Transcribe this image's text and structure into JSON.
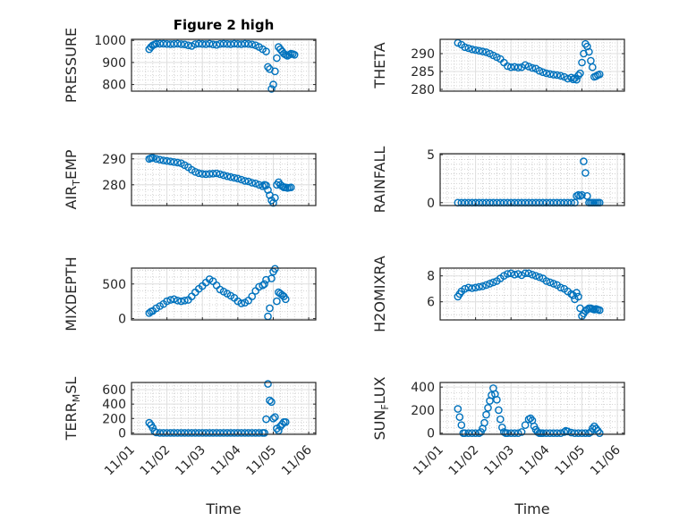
{
  "figure": {
    "title": "Figure 2 high"
  },
  "chart_data": [
    {
      "type": "scatter",
      "title": "Figure 2 high",
      "ylabel": "PRESSURE",
      "xlabel": "",
      "xlim": [
        0,
        5.2
      ],
      "ylim": [
        770,
        1005
      ],
      "yticks": [
        800,
        900,
        1000
      ],
      "xticks": [],
      "grid": true,
      "minor_grid": true,
      "color": "#0072BD",
      "x": [
        0.5,
        0.55,
        0.6,
        0.65,
        0.7,
        0.8,
        0.9,
        1.0,
        1.1,
        1.2,
        1.3,
        1.4,
        1.5,
        1.6,
        1.7,
        1.8,
        1.9,
        2.0,
        2.1,
        2.2,
        2.3,
        2.4,
        2.5,
        2.6,
        2.7,
        2.8,
        2.9,
        3.0,
        3.1,
        3.2,
        3.3,
        3.4,
        3.5,
        3.6,
        3.7,
        3.8,
        3.85,
        3.9,
        3.95,
        4.0,
        4.05,
        4.1,
        4.15,
        4.2,
        4.25,
        4.3,
        4.35,
        4.4,
        4.45,
        4.5,
        4.55,
        4.6
      ],
      "y": [
        960,
        970,
        978,
        982,
        985,
        985,
        985,
        984,
        983,
        984,
        985,
        983,
        982,
        978,
        975,
        983,
        985,
        984,
        983,
        985,
        982,
        980,
        984,
        985,
        984,
        983,
        985,
        984,
        983,
        985,
        984,
        982,
        978,
        970,
        960,
        950,
        880,
        870,
        780,
        800,
        860,
        920,
        970,
        960,
        950,
        940,
        935,
        930,
        935,
        940,
        938,
        935
      ]
    },
    {
      "type": "scatter",
      "title": "",
      "ylabel": "THETA",
      "xlabel": "",
      "xlim": [
        0,
        5.2
      ],
      "ylim": [
        279.5,
        294
      ],
      "yticks": [
        280,
        285,
        290
      ],
      "xticks": [],
      "grid": true,
      "minor_grid": true,
      "color": "#0072BD",
      "x": [
        0.5,
        0.6,
        0.7,
        0.8,
        0.9,
        1.0,
        1.1,
        1.2,
        1.3,
        1.4,
        1.5,
        1.6,
        1.7,
        1.8,
        1.9,
        2.0,
        2.1,
        2.2,
        2.3,
        2.4,
        2.5,
        2.6,
        2.7,
        2.8,
        2.9,
        3.0,
        3.1,
        3.2,
        3.3,
        3.4,
        3.5,
        3.6,
        3.7,
        3.75,
        3.8,
        3.85,
        3.9,
        3.95,
        4.0,
        4.05,
        4.1,
        4.15,
        4.2,
        4.25,
        4.3,
        4.35,
        4.4,
        4.45,
        4.5
      ],
      "y": [
        293,
        292.5,
        291.8,
        291.5,
        291.2,
        291,
        290.8,
        290.6,
        290.4,
        290,
        289.5,
        289,
        288.5,
        287.5,
        286.5,
        286.2,
        286.3,
        286.1,
        286.2,
        286.8,
        286.4,
        286,
        285.8,
        285.2,
        284.8,
        284.5,
        284.3,
        284.1,
        284,
        283.8,
        283.5,
        283,
        283.3,
        282.8,
        283.1,
        282.7,
        283.9,
        284.5,
        287.5,
        290,
        292.7,
        292,
        290.5,
        288,
        286.2,
        283.5,
        283.7,
        284,
        284.2
      ]
    },
    {
      "type": "scatter",
      "title": "",
      "ylabel": "AIR_TEMP",
      "ylabel_main": "AIR",
      "ylabel_sub": "T",
      "ylabel_tail": "EMP",
      "xlabel": "",
      "xlim": [
        0,
        5.2
      ],
      "ylim": [
        272,
        292
      ],
      "yticks": [
        280,
        290
      ],
      "xticks": [],
      "grid": true,
      "minor_grid": true,
      "color": "#0072BD",
      "x": [
        0.5,
        0.55,
        0.6,
        0.7,
        0.8,
        0.9,
        1.0,
        1.1,
        1.2,
        1.3,
        1.4,
        1.5,
        1.6,
        1.7,
        1.8,
        1.9,
        2.0,
        2.1,
        2.2,
        2.3,
        2.4,
        2.5,
        2.6,
        2.7,
        2.8,
        2.9,
        3.0,
        3.1,
        3.2,
        3.3,
        3.4,
        3.5,
        3.6,
        3.7,
        3.75,
        3.8,
        3.85,
        3.9,
        3.95,
        4.0,
        4.05,
        4.1,
        4.15,
        4.2,
        4.25,
        4.3,
        4.35,
        4.4,
        4.45,
        4.5
      ],
      "y": [
        290,
        290.3,
        290.4,
        290,
        289.7,
        289.4,
        289.2,
        289,
        288.8,
        288.6,
        288.3,
        287.6,
        286.8,
        285.8,
        285,
        284.5,
        284.2,
        284.1,
        284.2,
        284.3,
        284.4,
        284.1,
        283.7,
        283.3,
        283,
        282.7,
        282.4,
        282,
        281.5,
        281.3,
        280.8,
        280.5,
        280,
        279.5,
        280,
        279.8,
        278,
        276,
        274,
        273,
        275,
        280,
        281,
        280,
        279.5,
        279,
        279,
        278.8,
        278.9,
        279
      ]
    },
    {
      "type": "scatter",
      "title": "",
      "ylabel": "RAINFALL",
      "xlabel": "",
      "xlim": [
        0,
        5.2
      ],
      "ylim": [
        -0.3,
        5.1
      ],
      "yticks": [
        0,
        5
      ],
      "xticks": [],
      "grid": true,
      "minor_grid": true,
      "color": "#0072BD",
      "x": [
        0.5,
        0.6,
        0.7,
        0.8,
        0.9,
        1.0,
        1.1,
        1.2,
        1.3,
        1.4,
        1.5,
        1.6,
        1.7,
        1.8,
        1.9,
        2.0,
        2.1,
        2.2,
        2.3,
        2.4,
        2.5,
        2.6,
        2.7,
        2.8,
        2.9,
        3.0,
        3.1,
        3.2,
        3.3,
        3.4,
        3.5,
        3.6,
        3.7,
        3.8,
        3.85,
        3.9,
        3.95,
        4.0,
        4.05,
        4.1,
        4.15,
        4.2,
        4.25,
        4.3,
        4.35,
        4.4,
        4.45,
        4.5
      ],
      "y": [
        0,
        0,
        0,
        0,
        0,
        0,
        0,
        0,
        0,
        0,
        0,
        0,
        0,
        0,
        0,
        0,
        0,
        0,
        0,
        0,
        0,
        0,
        0,
        0,
        0,
        0,
        0,
        0,
        0,
        0,
        0,
        0,
        0,
        0,
        0.7,
        0.8,
        0.7,
        0.8,
        4.3,
        3.1,
        0.7,
        0,
        0,
        0,
        0,
        0,
        0,
        0
      ]
    },
    {
      "type": "scatter",
      "title": "",
      "ylabel": "MIXDEPTH",
      "xlabel": "",
      "xlim": [
        0,
        5.2
      ],
      "ylim": [
        -20,
        730
      ],
      "yticks": [
        0,
        500
      ],
      "xticks": [],
      "grid": true,
      "minor_grid": true,
      "color": "#0072BD",
      "x": [
        0.5,
        0.55,
        0.6,
        0.7,
        0.8,
        0.9,
        1.0,
        1.1,
        1.2,
        1.3,
        1.4,
        1.5,
        1.6,
        1.7,
        1.8,
        1.9,
        2.0,
        2.1,
        2.2,
        2.3,
        2.4,
        2.5,
        2.6,
        2.7,
        2.8,
        2.9,
        3.0,
        3.1,
        3.2,
        3.3,
        3.4,
        3.5,
        3.6,
        3.7,
        3.75,
        3.8,
        3.85,
        3.9,
        3.95,
        4.0,
        4.05,
        4.1,
        4.15,
        4.2,
        4.25,
        4.3,
        4.35
      ],
      "y": [
        80,
        100,
        110,
        150,
        180,
        210,
        250,
        270,
        280,
        260,
        250,
        260,
        270,
        320,
        380,
        430,
        470,
        520,
        570,
        540,
        480,
        420,
        390,
        360,
        330,
        300,
        250,
        220,
        230,
        260,
        320,
        400,
        460,
        480,
        500,
        560,
        30,
        150,
        580,
        680,
        720,
        250,
        380,
        360,
        340,
        320,
        280
      ]
    },
    {
      "type": "scatter",
      "title": "",
      "ylabel": "H2OMIXRA",
      "xlabel": "",
      "xlim": [
        0,
        5.2
      ],
      "ylim": [
        4.6,
        8.6
      ],
      "yticks": [
        6,
        8
      ],
      "xticks": [],
      "grid": true,
      "minor_grid": true,
      "color": "#0072BD",
      "x": [
        0.5,
        0.55,
        0.6,
        0.7,
        0.8,
        0.9,
        1.0,
        1.1,
        1.2,
        1.3,
        1.4,
        1.5,
        1.6,
        1.7,
        1.8,
        1.9,
        2.0,
        2.1,
        2.2,
        2.3,
        2.4,
        2.5,
        2.6,
        2.7,
        2.8,
        2.9,
        3.0,
        3.1,
        3.2,
        3.3,
        3.4,
        3.5,
        3.6,
        3.7,
        3.75,
        3.8,
        3.85,
        3.9,
        3.95,
        4.0,
        4.05,
        4.1,
        4.15,
        4.2,
        4.25,
        4.3,
        4.35,
        4.4,
        4.45,
        4.5
      ],
      "y": [
        6.4,
        6.6,
        6.8,
        7,
        7.1,
        7.05,
        7.1,
        7.15,
        7.2,
        7.3,
        7.4,
        7.5,
        7.6,
        7.8,
        8,
        8.15,
        8.2,
        8.1,
        8.15,
        8.05,
        8.2,
        8.2,
        8.1,
        8,
        7.9,
        7.8,
        7.6,
        7.5,
        7.4,
        7.3,
        7.1,
        7,
        6.8,
        6.6,
        6.5,
        6.2,
        6.7,
        6.4,
        5.5,
        4.9,
        5.1,
        5.3,
        5.4,
        5.5,
        5.5,
        5.45,
        5.4,
        5.45,
        5.4,
        5.35
      ]
    },
    {
      "type": "scatter",
      "title": "",
      "ylabel": "TERR_MSL",
      "ylabel_main": "TERR",
      "ylabel_sub": "M",
      "ylabel_tail": "SL",
      "xlabel": "Time",
      "xlim": [
        0,
        5.2
      ],
      "ylim": [
        -20,
        700
      ],
      "yticks": [
        0,
        200,
        400,
        600
      ],
      "xticks": [
        0,
        1,
        2,
        3,
        4,
        5
      ],
      "xticklabels": [
        "11/01",
        "11/02",
        "11/03",
        "11/04",
        "11/05",
        "11/06"
      ],
      "grid": true,
      "minor_grid": true,
      "color": "#0072BD",
      "x": [
        0.5,
        0.55,
        0.6,
        0.65,
        0.7,
        0.8,
        0.9,
        1.0,
        1.1,
        1.2,
        1.3,
        1.4,
        1.5,
        1.6,
        1.7,
        1.8,
        1.9,
        2.0,
        2.1,
        2.2,
        2.3,
        2.4,
        2.5,
        2.6,
        2.7,
        2.8,
        2.9,
        3.0,
        3.1,
        3.2,
        3.3,
        3.4,
        3.5,
        3.6,
        3.7,
        3.75,
        3.8,
        3.85,
        3.9,
        3.95,
        4.0,
        4.05,
        4.1,
        4.15,
        4.2,
        4.25,
        4.3,
        4.35
      ],
      "y": [
        140,
        110,
        70,
        20,
        5,
        0,
        0,
        0,
        0,
        0,
        0,
        0,
        0,
        0,
        0,
        0,
        0,
        0,
        0,
        0,
        0,
        0,
        0,
        0,
        0,
        0,
        0,
        0,
        0,
        0,
        0,
        0,
        0,
        0,
        0,
        0,
        190,
        680,
        450,
        430,
        200,
        220,
        60,
        30,
        90,
        120,
        150,
        150
      ]
    },
    {
      "type": "scatter",
      "title": "",
      "ylabel": "SUN_FLUX",
      "ylabel_main": "SUN",
      "ylabel_sub": "F",
      "ylabel_tail": "LUX",
      "xlabel": "Time",
      "xlim": [
        0,
        5.2
      ],
      "ylim": [
        -10,
        440
      ],
      "yticks": [
        0,
        200,
        400
      ],
      "xticks": [
        0,
        1,
        2,
        3,
        4,
        5
      ],
      "xticklabels": [
        "11/01",
        "11/02",
        "11/03",
        "11/04",
        "11/05",
        "11/06"
      ],
      "grid": true,
      "minor_grid": true,
      "color": "#0072BD",
      "x": [
        0.5,
        0.55,
        0.6,
        0.65,
        0.7,
        0.8,
        0.9,
        1.0,
        1.1,
        1.15,
        1.2,
        1.25,
        1.3,
        1.35,
        1.4,
        1.45,
        1.5,
        1.55,
        1.6,
        1.65,
        1.7,
        1.75,
        1.8,
        1.85,
        1.9,
        2.0,
        2.1,
        2.2,
        2.3,
        2.4,
        2.5,
        2.55,
        2.6,
        2.65,
        2.7,
        2.75,
        2.8,
        2.85,
        2.9,
        3.0,
        3.1,
        3.2,
        3.3,
        3.4,
        3.5,
        3.55,
        3.6,
        3.7,
        3.8,
        3.9,
        4.0,
        4.1,
        4.2,
        4.25,
        4.3,
        4.35,
        4.4,
        4.45,
        4.5
      ],
      "y": [
        210,
        140,
        70,
        0,
        0,
        0,
        0,
        0,
        0,
        10,
        40,
        90,
        160,
        220,
        280,
        330,
        390,
        340,
        290,
        200,
        120,
        50,
        10,
        0,
        0,
        0,
        0,
        0,
        10,
        70,
        120,
        130,
        110,
        60,
        30,
        10,
        0,
        0,
        0,
        0,
        0,
        0,
        0,
        0,
        10,
        20,
        15,
        5,
        0,
        0,
        0,
        0,
        0,
        10,
        40,
        60,
        40,
        20,
        0
      ]
    }
  ]
}
